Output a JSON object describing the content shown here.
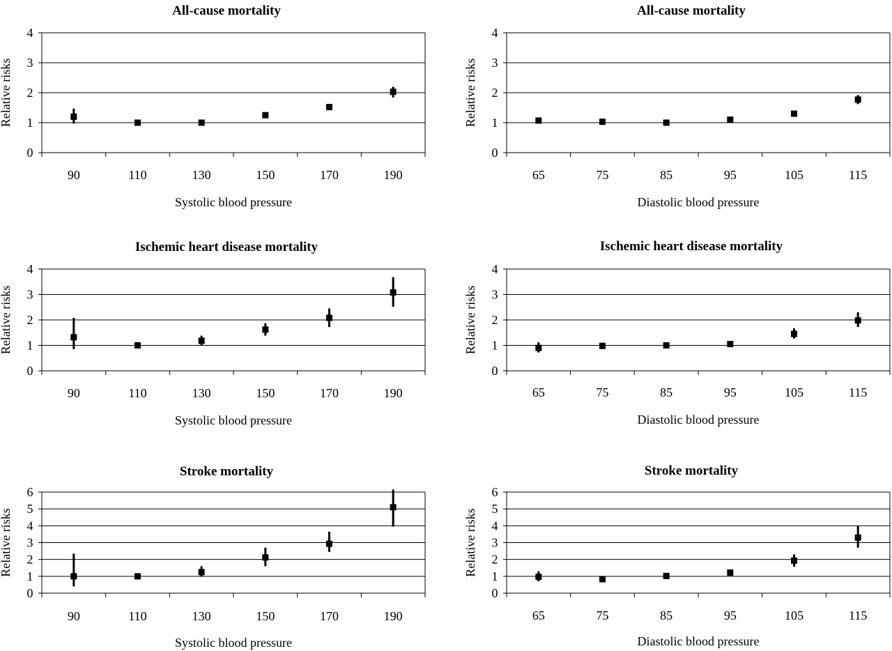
{
  "chart_data": [
    {
      "type": "scatter",
      "title": "All-cause mortality",
      "xlabel": "Systolic blood pressure",
      "ylabel": "Relative risks",
      "categories": [
        "90",
        "110",
        "130",
        "150",
        "170",
        "190"
      ],
      "ylim": [
        0,
        4
      ],
      "yticks": [
        0,
        1,
        2,
        3,
        4
      ],
      "grid": "horizontal",
      "series": [
        {
          "values": [
            1.2,
            1.0,
            1.0,
            1.25,
            1.52,
            2.03
          ],
          "lower": [
            0.97,
            1.0,
            1.0,
            1.2,
            1.43,
            1.84
          ],
          "upper": [
            1.47,
            1.0,
            1.0,
            1.3,
            1.62,
            2.2
          ]
        }
      ]
    },
    {
      "type": "scatter",
      "title": "All-cause mortality",
      "xlabel": "Diastolic blood pressure",
      "ylabel": "Relative risks",
      "categories": [
        "65",
        "75",
        "85",
        "95",
        "105",
        "115"
      ],
      "ylim": [
        0,
        4
      ],
      "yticks": [
        0,
        1,
        2,
        3,
        4
      ],
      "grid": "horizontal",
      "series": [
        {
          "values": [
            1.07,
            1.03,
            1.0,
            1.1,
            1.3,
            1.77
          ],
          "lower": [
            0.97,
            1.0,
            1.0,
            1.03,
            1.22,
            1.62
          ],
          "upper": [
            1.17,
            1.06,
            1.0,
            1.17,
            1.38,
            1.92
          ]
        }
      ]
    },
    {
      "type": "scatter",
      "title": "Ischemic heart disease mortality",
      "xlabel": "Systolic blood pressure",
      "ylabel": "Relative risks",
      "categories": [
        "90",
        "110",
        "130",
        "150",
        "170",
        "190"
      ],
      "ylim": [
        0,
        4
      ],
      "yticks": [
        0,
        1,
        2,
        3,
        4
      ],
      "grid": "horizontal",
      "series": [
        {
          "values": [
            1.32,
            1.0,
            1.18,
            1.62,
            2.08,
            3.08
          ],
          "lower": [
            0.85,
            1.0,
            1.0,
            1.38,
            1.72,
            2.52
          ],
          "upper": [
            2.08,
            1.0,
            1.38,
            1.87,
            2.45,
            3.68
          ]
        }
      ]
    },
    {
      "type": "scatter",
      "title": "Ischemic heart disease mortality",
      "xlabel": "Diastolic blood pressure",
      "ylabel": "Relative risks",
      "categories": [
        "65",
        "75",
        "85",
        "95",
        "105",
        "115"
      ],
      "ylim": [
        0,
        4
      ],
      "yticks": [
        0,
        1,
        2,
        3,
        4
      ],
      "grid": "horizontal",
      "series": [
        {
          "values": [
            0.9,
            0.98,
            1.0,
            1.05,
            1.45,
            1.98
          ],
          "lower": [
            0.72,
            0.87,
            1.0,
            0.97,
            1.27,
            1.72
          ],
          "upper": [
            1.12,
            1.1,
            1.0,
            1.13,
            1.67,
            2.3
          ]
        }
      ]
    },
    {
      "type": "scatter",
      "title": "Stroke mortality",
      "xlabel": "Systolic blood pressure",
      "ylabel": "Relative risks",
      "categories": [
        "90",
        "110",
        "130",
        "150",
        "170",
        "190"
      ],
      "ylim": [
        0,
        6
      ],
      "yticks": [
        0,
        1,
        2,
        3,
        4,
        5,
        6
      ],
      "grid": "horizontal",
      "series": [
        {
          "values": [
            1.0,
            1.0,
            1.25,
            2.12,
            2.93,
            5.1
          ],
          "lower": [
            0.4,
            1.0,
            0.97,
            1.6,
            2.45,
            3.95
          ],
          "upper": [
            2.35,
            1.0,
            1.6,
            2.7,
            3.65,
            6.15
          ]
        }
      ]
    },
    {
      "type": "scatter",
      "title": "Stroke mortality",
      "xlabel": "Diastolic blood pressure",
      "ylabel": "Relative risks",
      "categories": [
        "65",
        "75",
        "85",
        "95",
        "105",
        "115"
      ],
      "ylim": [
        0,
        6
      ],
      "yticks": [
        0,
        1,
        2,
        3,
        4,
        5,
        6
      ],
      "grid": "horizontal",
      "series": [
        {
          "values": [
            0.97,
            0.83,
            1.02,
            1.22,
            1.93,
            3.3
          ],
          "lower": [
            0.7,
            0.72,
            0.9,
            1.05,
            1.57,
            2.7
          ],
          "upper": [
            1.3,
            0.97,
            1.1,
            1.4,
            2.3,
            4.0
          ]
        }
      ]
    }
  ]
}
